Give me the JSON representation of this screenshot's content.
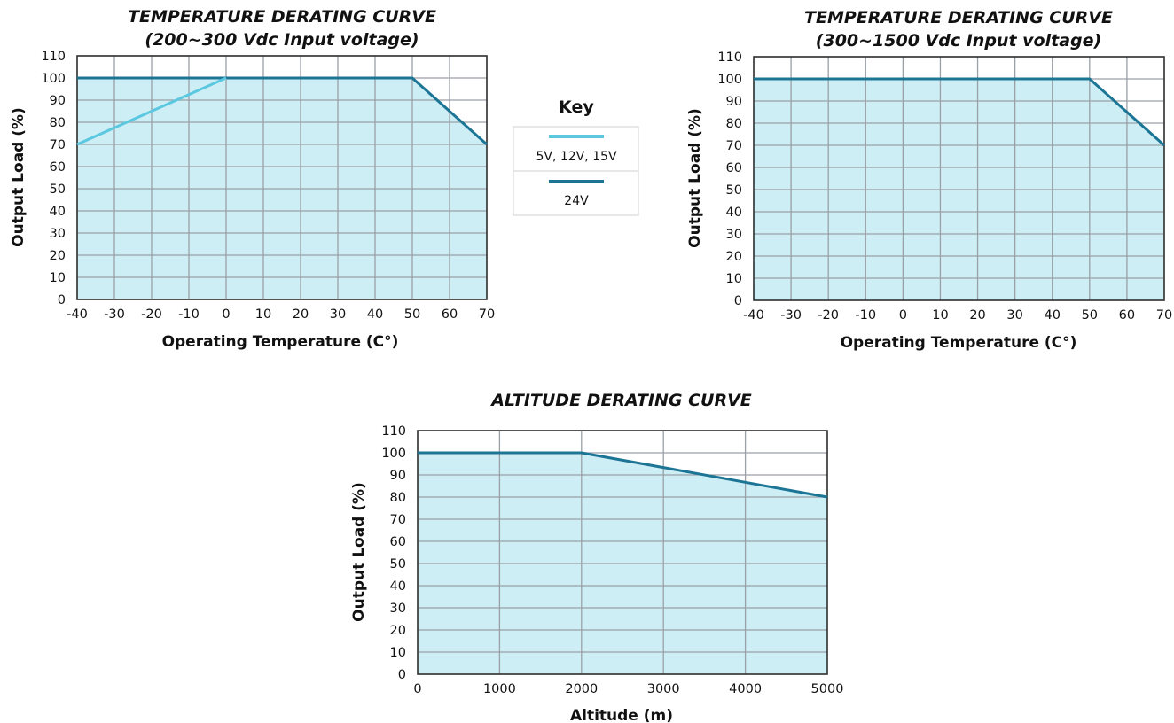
{
  "key": {
    "title": "Key",
    "entries": [
      {
        "label": "5V, 12V, 15V",
        "color": "#5bc8e0"
      },
      {
        "label": "24V",
        "color": "#1c7595"
      }
    ]
  },
  "colors": {
    "fill": "#cdeef5",
    "grid": "#9aa0a6",
    "frame": "#333333"
  },
  "chart_data": [
    {
      "type": "line",
      "title": [
        "TEMPERATURE DERATING CURVE",
        "(200~300 Vdc Input voltage)"
      ],
      "xlabel": "Operating Temperature (C°)",
      "ylabel": "Output Load (%)",
      "xlim": [
        -40,
        70
      ],
      "ylim": [
        0,
        110
      ],
      "xticks": [
        -40,
        -30,
        -20,
        -10,
        0,
        10,
        20,
        30,
        40,
        50,
        60,
        70
      ],
      "yticks": [
        0,
        10,
        20,
        30,
        40,
        50,
        60,
        70,
        80,
        90,
        100,
        110
      ],
      "grid": true,
      "filled_area": {
        "x": [
          -40,
          50,
          70
        ],
        "y": [
          100,
          100,
          70
        ]
      },
      "series": [
        {
          "name": "5V, 12V, 15V",
          "color": "#5bc8e0",
          "x": [
            -40,
            0
          ],
          "y": [
            70,
            100
          ]
        },
        {
          "name": "24V",
          "color": "#1c7595",
          "x": [
            -40,
            50,
            70
          ],
          "y": [
            100,
            100,
            70
          ]
        }
      ]
    },
    {
      "type": "line",
      "title": [
        "TEMPERATURE DERATING CURVE",
        "(300~1500 Vdc Input voltage)"
      ],
      "xlabel": "Operating Temperature (C°)",
      "ylabel": "Output Load (%)",
      "xlim": [
        -40,
        70
      ],
      "ylim": [
        0,
        110
      ],
      "xticks": [
        -40,
        -30,
        -20,
        -10,
        0,
        10,
        20,
        30,
        40,
        50,
        60,
        70
      ],
      "yticks": [
        0,
        10,
        20,
        30,
        40,
        50,
        60,
        70,
        80,
        90,
        100,
        110
      ],
      "grid": true,
      "filled_area": {
        "x": [
          -40,
          50,
          70
        ],
        "y": [
          100,
          100,
          70
        ]
      },
      "series": [
        {
          "color": "#1c7595",
          "x": [
            -40,
            50,
            70
          ],
          "y": [
            100,
            100,
            70
          ]
        }
      ]
    },
    {
      "type": "line",
      "title": [
        "ALTITUDE DERATING CURVE"
      ],
      "xlabel": "Altitude (m)",
      "ylabel": "Output Load (%)",
      "xlim": [
        0,
        5000
      ],
      "ylim": [
        0,
        110
      ],
      "xticks": [
        0,
        1000,
        2000,
        3000,
        4000,
        5000
      ],
      "yticks": [
        0,
        10,
        20,
        30,
        40,
        50,
        60,
        70,
        80,
        90,
        100,
        110
      ],
      "grid": true,
      "filled_area": {
        "x": [
          0,
          2000,
          5000
        ],
        "y": [
          100,
          100,
          80
        ]
      },
      "series": [
        {
          "color": "#1c7595",
          "x": [
            0,
            2000,
            5000
          ],
          "y": [
            100,
            100,
            80
          ]
        }
      ]
    }
  ]
}
